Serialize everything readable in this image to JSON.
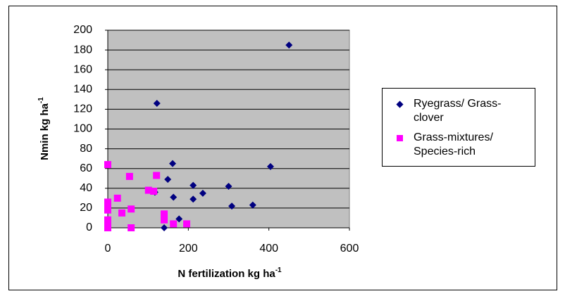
{
  "chart_data": {
    "type": "scatter",
    "xlabel": "N fertilization kg ha",
    "xlabel_superscript": "-1",
    "ylabel": "Nmin kg ha",
    "ylabel_superscript": "-1",
    "xlim": [
      0,
      600
    ],
    "xticks": [
      0,
      200,
      400,
      600
    ],
    "ylim": [
      0,
      200
    ],
    "yticks": [
      0,
      20,
      40,
      60,
      80,
      100,
      120,
      140,
      160,
      180,
      200
    ],
    "grid": true,
    "plot_background": "#c0c0c0",
    "legend": "right",
    "series": [
      {
        "name": "Ryegrass/ Grass-clover",
        "color": "#000080",
        "marker": "diamond",
        "x": [
          450,
          122,
          161,
          404,
          149,
          212,
          300,
          236,
          117,
          163,
          212,
          308,
          360,
          177,
          140
        ],
        "values": [
          185,
          126,
          65,
          62,
          49,
          43,
          42,
          35,
          36,
          31,
          29,
          22,
          23,
          9,
          0
        ]
      },
      {
        "name": "Grass-mixtures/ Species-rich",
        "color": "#ff00ff",
        "marker": "square",
        "x": [
          0,
          54,
          121,
          101,
          114,
          24,
          0,
          0,
          0,
          58,
          35,
          140,
          140,
          0,
          0,
          196,
          163,
          58,
          0
        ],
        "values": [
          64,
          52,
          53,
          38,
          37,
          30,
          26,
          22,
          18,
          19,
          15,
          14,
          8,
          8,
          4,
          4,
          4,
          0,
          0
        ]
      }
    ]
  }
}
